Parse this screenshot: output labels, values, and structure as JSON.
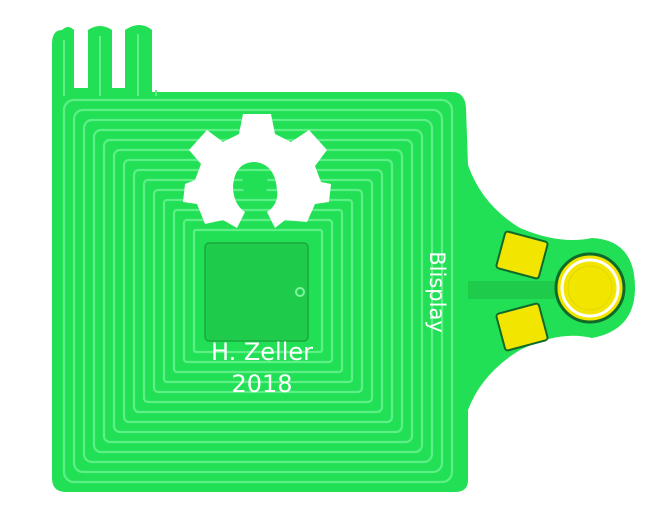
{
  "board": {
    "credit_name": "H. Zeller",
    "credit_year": "2018",
    "side_label": "Blisplay",
    "logo": "oshw-gear-logo"
  },
  "colors": {
    "background": "#ffffff",
    "board": "#22e055",
    "trace": "#1fcb4b",
    "gap": "#5ef086",
    "silkscreen": "#ffffff",
    "pad_gold": "#f2e600",
    "pad_outline": "#0f6a2a"
  }
}
